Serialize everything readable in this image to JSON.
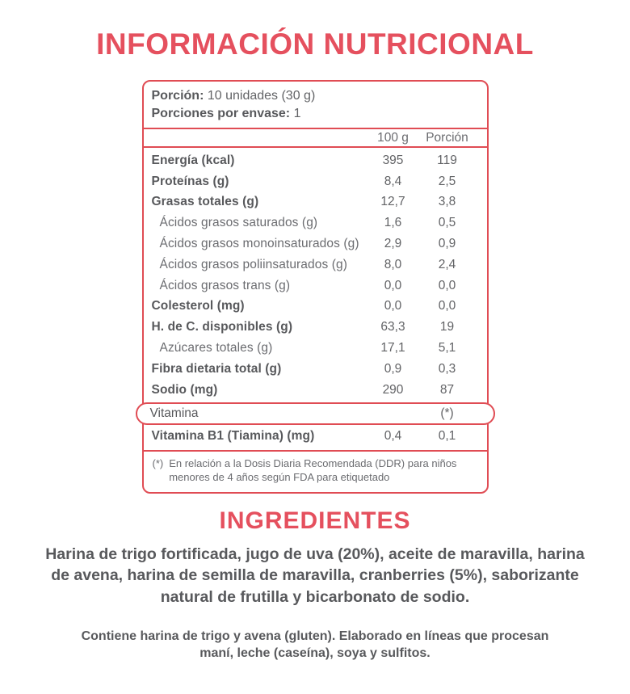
{
  "colors": {
    "red": "#e04c54",
    "red_title": "#e5505e",
    "text_dark": "#58595c",
    "text_mid": "#626366",
    "text_light": "#6b6c70"
  },
  "title": "INFORMACIÓN NUTRICIONAL",
  "panel": {
    "serving_label": "Porción:",
    "serving_value": "10 unidades (30 g)",
    "servings_per_pack_label": "Porciones por envase:",
    "servings_per_pack_value": "1",
    "col_100g": "100 g",
    "col_portion": "Porción",
    "rows": [
      {
        "label": "Energía (kcal)",
        "per100": "395",
        "portion": "119"
      },
      {
        "label": "Proteínas (g)",
        "per100": "8,4",
        "portion": "2,5"
      },
      {
        "label": "Grasas totales (g)",
        "per100": "12,7",
        "portion": "3,8"
      },
      {
        "label": "Ácidos grasos saturados (g)",
        "per100": "1,6",
        "portion": "0,5"
      },
      {
        "label": "Ácidos grasos monoinsaturados (g)",
        "per100": "2,9",
        "portion": "0,9"
      },
      {
        "label": "Ácidos grasos poliinsaturados (g)",
        "per100": "8,0",
        "portion": "2,4"
      },
      {
        "label": "Ácidos grasos trans (g)",
        "per100": "0,0",
        "portion": "0,0"
      },
      {
        "label": "Colesterol (mg)",
        "per100": "0,0",
        "portion": "0,0"
      },
      {
        "label": "H. de C. disponibles (g)",
        "per100": "63,3",
        "portion": "19"
      },
      {
        "label": "Azúcares totales (g)",
        "per100": "17,1",
        "portion": "5,1"
      },
      {
        "label": "Fibra dietaria total (g)",
        "per100": "0,9",
        "portion": "0,3"
      },
      {
        "label": "Sodio (mg)",
        "per100": "290",
        "portion": "87"
      }
    ],
    "vitamin_row": {
      "label": "Vitamina",
      "per100": "",
      "portion": "(*)"
    },
    "b1_row": {
      "label": "Vitamina B1 (Tiamina) (mg)",
      "per100": "0,4",
      "portion": "0,1"
    },
    "footnote_marker": "(*)",
    "footnote_text": "En relación a la Dosis Diaria Recomendada (DDR) para niños menores de 4 años según FDA para etiquetado"
  },
  "ingredients": {
    "title": "INGREDIENTES",
    "text": "Harina de trigo fortificada, jugo de uva (20%), aceite de maravilla, harina de avena, harina de semilla de maravilla, cranberries (5%), saborizante natural de frutilla y bicarbonato de sodio.",
    "allergen_text": "Contiene harina de trigo y avena (gluten). Elaborado en líneas que procesan maní, leche (caseína), soya y sulfitos."
  }
}
